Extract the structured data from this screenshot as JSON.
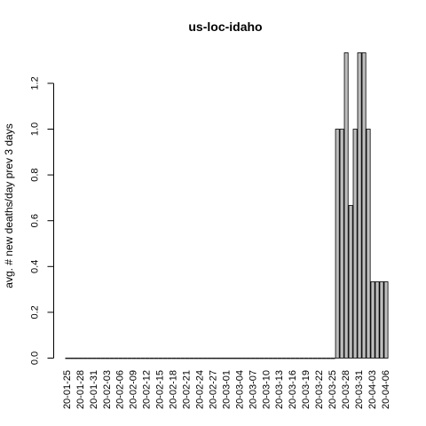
{
  "chart_data": {
    "type": "bar",
    "title": "us-loc-idaho",
    "xlabel": "",
    "ylabel": "avg. # new deaths/day prev  3  days",
    "ylim": [
      0,
      1.3333
    ],
    "yticks": [
      0.0,
      0.2,
      0.4,
      0.6,
      0.8,
      1.0,
      1.2
    ],
    "ytick_labels": [
      "0.0",
      "0.2",
      "0.4",
      "0.6",
      "0.8",
      "1.0",
      "1.2"
    ],
    "xtick_labels": [
      "20-01-25",
      "20-01-28",
      "20-01-31",
      "20-02-03",
      "20-02-06",
      "20-02-09",
      "20-02-12",
      "20-02-15",
      "20-02-18",
      "20-02-21",
      "20-02-24",
      "20-02-27",
      "20-03-01",
      "20-03-04",
      "20-03-07",
      "20-03-10",
      "20-03-13",
      "20-03-16",
      "20-03-19",
      "20-03-22",
      "20-03-25",
      "20-03-28",
      "20-03-31",
      "20-04-03",
      "20-04-06"
    ],
    "categories": [
      "20-01-25",
      "20-01-26",
      "20-01-27",
      "20-01-28",
      "20-01-29",
      "20-01-30",
      "20-01-31",
      "20-02-01",
      "20-02-02",
      "20-02-03",
      "20-02-04",
      "20-02-05",
      "20-02-06",
      "20-02-07",
      "20-02-08",
      "20-02-09",
      "20-02-10",
      "20-02-11",
      "20-02-12",
      "20-02-13",
      "20-02-14",
      "20-02-15",
      "20-02-16",
      "20-02-17",
      "20-02-18",
      "20-02-19",
      "20-02-20",
      "20-02-21",
      "20-02-22",
      "20-02-23",
      "20-02-24",
      "20-02-25",
      "20-02-26",
      "20-02-27",
      "20-02-28",
      "20-02-29",
      "20-03-01",
      "20-03-02",
      "20-03-03",
      "20-03-04",
      "20-03-05",
      "20-03-06",
      "20-03-07",
      "20-03-08",
      "20-03-09",
      "20-03-10",
      "20-03-11",
      "20-03-12",
      "20-03-13",
      "20-03-14",
      "20-03-15",
      "20-03-16",
      "20-03-17",
      "20-03-18",
      "20-03-19",
      "20-03-20",
      "20-03-21",
      "20-03-22",
      "20-03-23",
      "20-03-24",
      "20-03-25",
      "20-03-26",
      "20-03-27",
      "20-03-28",
      "20-03-29",
      "20-03-30",
      "20-03-31",
      "20-04-01",
      "20-04-02",
      "20-04-03",
      "20-04-04",
      "20-04-05",
      "20-04-06"
    ],
    "values": [
      0,
      0,
      0,
      0,
      0,
      0,
      0,
      0,
      0,
      0,
      0,
      0,
      0,
      0,
      0,
      0,
      0,
      0,
      0,
      0,
      0,
      0,
      0,
      0,
      0,
      0,
      0,
      0,
      0,
      0,
      0,
      0,
      0,
      0,
      0,
      0,
      0,
      0,
      0,
      0,
      0,
      0,
      0,
      0,
      0,
      0,
      0,
      0,
      0,
      0,
      0,
      0,
      0,
      0,
      0,
      0,
      0,
      0,
      0,
      0,
      0,
      1.0,
      1.0,
      1.3333,
      0.6667,
      1.0,
      1.3333,
      1.3333,
      1.0,
      0.3333,
      0.3333,
      0.3333,
      0.3333
    ],
    "colors": {
      "bar_fill": "#bebebe",
      "bar_stroke": "#000000"
    },
    "grid": false
  }
}
